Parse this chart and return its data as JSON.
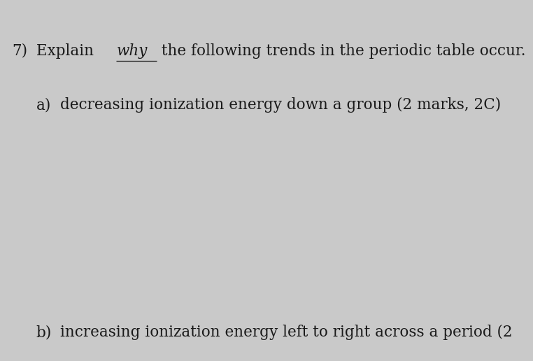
{
  "background_color": "#c9c9c9",
  "line1_number": "7)",
  "line1_explain": "Explain ",
  "line1_underline": "why",
  "line1_rest": " the following trends in the periodic table occur.",
  "line2_label": "a)",
  "line2_text": "decreasing ionization energy down a group (2 marks, 2C)",
  "line3_label": "b)",
  "line3_text": "increasing ionization energy left to right across a period (2",
  "font_size_main": 15.5,
  "text_color": "#1a1a1a",
  "fig_width": 7.62,
  "fig_height": 5.16,
  "dpi": 100
}
